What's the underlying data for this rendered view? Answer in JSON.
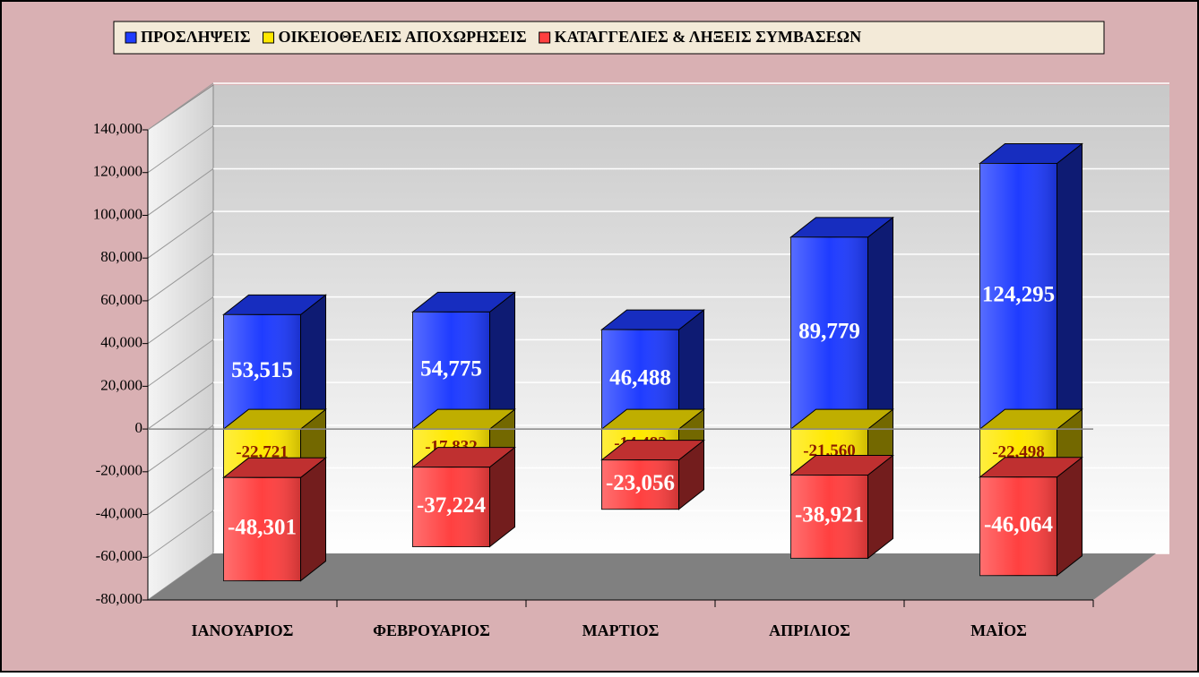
{
  "chart_data": {
    "type": "bar3d-stacked",
    "categories": [
      "ΙΑΝΟΥΑΡΙΟΣ",
      "ΦΕΒΡΟΥΑΡΙΟΣ",
      "ΜΑΡΤΙΟΣ",
      "ΑΠΡΙΛΙΟΣ",
      "ΜΑΪΟΣ"
    ],
    "series": [
      {
        "name": "ΠΡΟΣΛΗΨΕΙΣ",
        "color": "#1f3cff",
        "values": [
          53515,
          54775,
          46488,
          89779,
          124295
        ],
        "value_labels": [
          "53,515",
          "54,775",
          "46,488",
          "89,779",
          "124,295"
        ]
      },
      {
        "name": "ΟΙΚΕΙΟΘΕΛΕΙΣ ΑΠΟΧΩΡΗΣΕΙΣ",
        "color": "#ffe800",
        "values": [
          -22721,
          -17832,
          -14482,
          -21560,
          -22498
        ],
        "value_labels": [
          "-22,721",
          "-17,832",
          "-14,482",
          "-21,560",
          "-22,498"
        ]
      },
      {
        "name": "ΚΑΤΑΓΓΕΛΙΕΣ & ΛΗΞΕΙΣ ΣΥΜΒΑΣΕΩΝ",
        "color": "#ff4040",
        "values": [
          -48301,
          -37224,
          -23056,
          -38921,
          -46064
        ],
        "value_labels": [
          "-48,301",
          "-37,224",
          "-23,056",
          "-38,921",
          "-46,064"
        ]
      }
    ],
    "ylim": [
      -80000,
      140000
    ],
    "yticks": [
      {
        "value": -80000,
        "label": "-80,000"
      },
      {
        "value": -60000,
        "label": "-60,000"
      },
      {
        "value": -40000,
        "label": "-40,000"
      },
      {
        "value": -20000,
        "label": "-20,000"
      },
      0,
      {
        "value": 20000,
        "label": "20,000"
      },
      {
        "value": 40000,
        "label": "40,000"
      },
      {
        "value": 60000,
        "label": "60,000"
      },
      {
        "value": 80000,
        "label": "80,000"
      },
      {
        "value": 100000,
        "label": "100,000"
      },
      {
        "value": 120000,
        "label": "120,000"
      },
      {
        "value": 140000,
        "label": "140,000"
      }
    ],
    "grid": true
  }
}
